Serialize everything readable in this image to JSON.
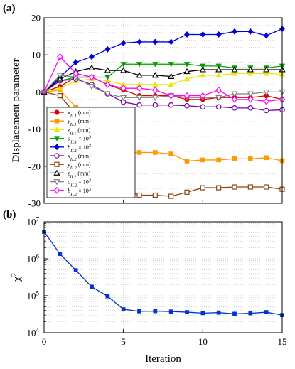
{
  "figure": {
    "panels": [
      "(a)",
      "(b)"
    ]
  },
  "chart_data": [
    {
      "type": "line",
      "panel_label": "(a)",
      "ylabel": "Displacement parameter",
      "xlabel": "",
      "xlim": [
        0,
        15
      ],
      "ylim": [
        -30,
        20
      ],
      "yticks": [
        -30,
        -20,
        -10,
        0,
        10,
        20
      ],
      "xticks": [
        0,
        5,
        10,
        15
      ],
      "show_xtick_labels": false,
      "grid": "minor dotted",
      "legend_position": "lower-left inside",
      "x": [
        0,
        1,
        2,
        3,
        4,
        5,
        6,
        7,
        8,
        9,
        10,
        11,
        12,
        13,
        14,
        15
      ],
      "series": [
        {
          "name": "x_{IL1} (mm)",
          "color": "#e00000",
          "marker": "circle",
          "values": [
            0,
            1.5,
            4,
            4,
            2,
            0.5,
            -1,
            -1,
            -1,
            -2,
            -2,
            -1.5,
            -1.5,
            -1.5,
            -1,
            -2
          ]
        },
        {
          "name": "y_{IL1} (mm)",
          "color": "#ff9900",
          "marker": "square",
          "values": [
            0,
            0.5,
            -4,
            -8,
            -13,
            -16.3,
            -16.3,
            -16.3,
            -16.7,
            -18.6,
            -18.3,
            -18.3,
            -18,
            -18,
            -17.7,
            -18.5
          ]
        },
        {
          "name": "z_{IL1} (mm)",
          "color": "#e8e800",
          "marker": "triangle-up",
          "values": [
            0,
            1,
            3,
            3.5,
            3,
            2,
            2,
            2,
            2,
            3.5,
            4.5,
            4.5,
            5,
            5,
            5,
            4.8
          ]
        },
        {
          "name": "a_{IL1} × 10^3",
          "color": "#00a000",
          "marker": "triangle-down",
          "values": [
            0,
            3,
            4,
            4,
            4,
            7.5,
            7.5,
            7.5,
            7.5,
            7.5,
            7,
            7,
            6.5,
            6.5,
            6.5,
            7
          ]
        },
        {
          "name": "b_{IL1} × 10^3",
          "color": "#0000dd",
          "marker": "diamond",
          "values": [
            0,
            4,
            8,
            9.5,
            11.5,
            13.2,
            13.5,
            13.5,
            13.5,
            15.5,
            15.5,
            15.5,
            16.3,
            16.3,
            15.2,
            17
          ]
        },
        {
          "name": "x_{IL2} (mm)",
          "color": "#7a00b0",
          "marker": "circle",
          "values": [
            0,
            3,
            3.5,
            2,
            -0.5,
            -2.7,
            -3.5,
            -3.5,
            -3.5,
            -3.7,
            -4,
            -4,
            -4.3,
            -4.3,
            -5,
            -4.8
          ]
        },
        {
          "name": "y_{IL2} (mm)",
          "color": "#8b4513",
          "marker": "square",
          "values": [
            0,
            -1,
            -6,
            -16,
            -22.5,
            -26.2,
            -27.8,
            -27.8,
            -28.1,
            -27,
            -25.8,
            -25.8,
            -25.6,
            -25.6,
            -25.6,
            -26.2
          ]
        },
        {
          "name": "z_{IL2} (mm)",
          "color": "#000000",
          "marker": "triangle-up",
          "values": [
            0,
            3.5,
            5.5,
            6.5,
            5.8,
            5.8,
            4.5,
            4.5,
            4.2,
            5.5,
            6,
            6,
            6,
            6,
            6,
            6
          ]
        },
        {
          "name": "a_{IL2} × 10^3",
          "color": "#808080",
          "marker": "triangle-down",
          "values": [
            0,
            4.5,
            4,
            1.5,
            -0.5,
            -1.5,
            -1.5,
            -1.5,
            -1,
            -1.5,
            -1.5,
            -1.5,
            -0.5,
            -0.5,
            0,
            0
          ]
        },
        {
          "name": "b_{IL2} × 10^3",
          "color": "#ff00ff",
          "marker": "diamond",
          "values": [
            0,
            9.5,
            5,
            4,
            2,
            1,
            1,
            0.5,
            -1,
            -1,
            -1,
            0.5,
            -2,
            -2,
            -2.5,
            -2
          ]
        }
      ]
    },
    {
      "type": "line",
      "panel_label": "(b)",
      "xlabel": "Iteration",
      "ylabel": "χ²",
      "yscale": "log",
      "xlim": [
        0,
        15
      ],
      "ylim": [
        10000,
        10000000
      ],
      "xticks": [
        0,
        5,
        10,
        15
      ],
      "grid": "minor dotted",
      "x": [
        0,
        1,
        2,
        3,
        4,
        5,
        6,
        7,
        8,
        9,
        10,
        11,
        12,
        13,
        14,
        15
      ],
      "series": [
        {
          "name": "",
          "color": "#0033cc",
          "marker": "square",
          "values": [
            5400000,
            1350000,
            490000,
            175000,
            97000,
            43000,
            38000,
            38500,
            37500,
            36000,
            34000,
            35000,
            32500,
            33500,
            36000,
            30000
          ]
        }
      ]
    }
  ]
}
